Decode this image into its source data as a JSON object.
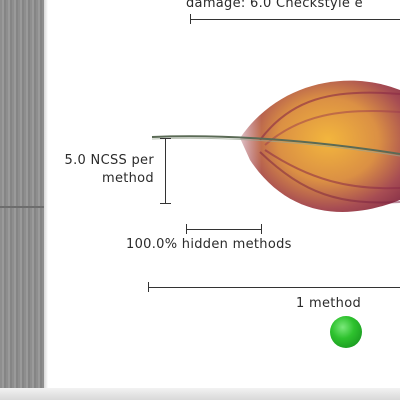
{
  "caption": {
    "top": "damage: 6.0 Checkstyle e",
    "ncss_line1": "5.0 NCSS per",
    "ncss_line2": "method",
    "hidden": "100.0% hidden methods",
    "method": "1 method"
  },
  "colors": {
    "feather_core": "#f5c542",
    "feather_edge": "#7a1f3d",
    "ball": "#22b022"
  }
}
